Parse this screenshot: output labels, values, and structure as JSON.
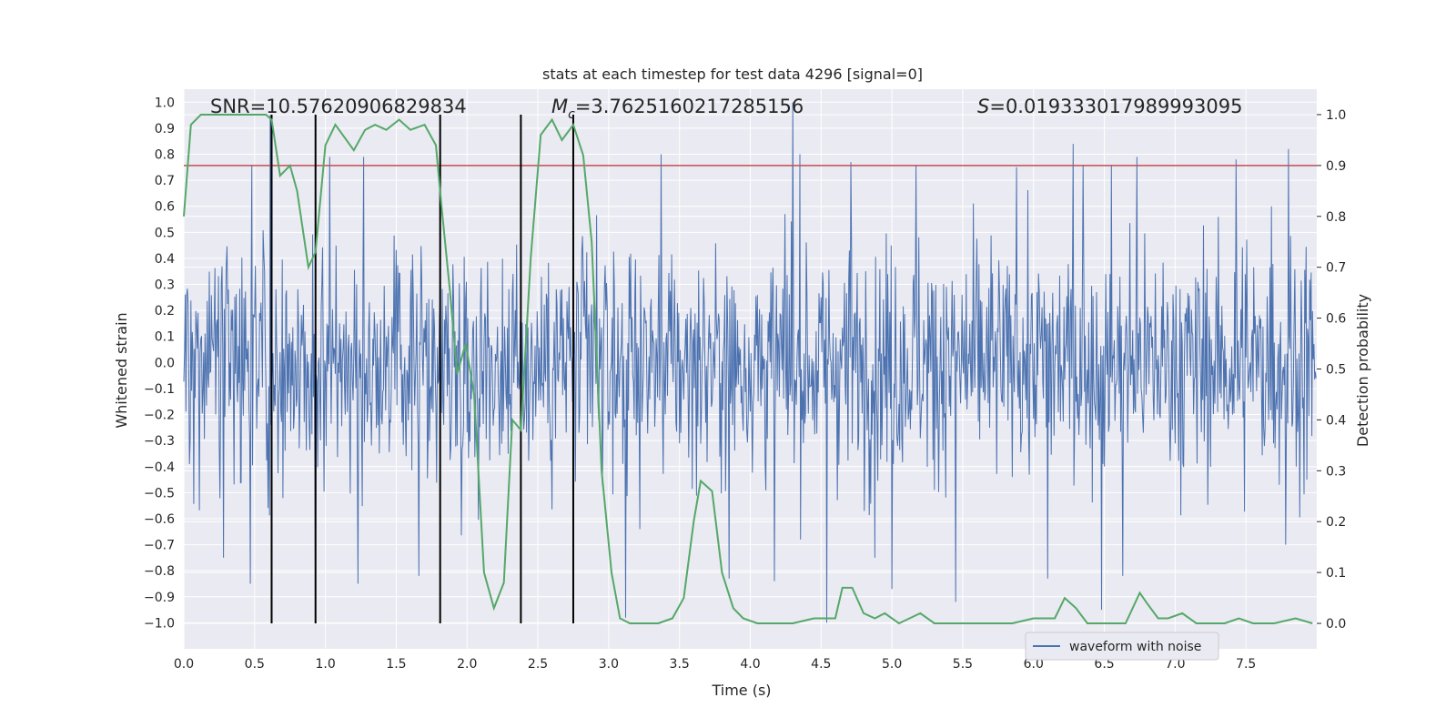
{
  "chart_data": {
    "type": "line",
    "title": "stats at each timestep for test data 4296 [signal=0]",
    "xlabel": "Time (s)",
    "ylabel": "Whitened strain",
    "y2label": "Detection probability",
    "xlim": [
      0.0,
      8.0
    ],
    "ylim": [
      -1.1,
      1.05
    ],
    "y2lim": [
      -0.05,
      1.05
    ],
    "xticks": [
      "0.0",
      "0.5",
      "1.0",
      "1.5",
      "2.0",
      "2.5",
      "3.0",
      "3.5",
      "4.0",
      "4.5",
      "5.0",
      "5.5",
      "6.0",
      "6.5",
      "7.0",
      "7.5"
    ],
    "yticks": [
      "1.0",
      "0.9",
      "0.8",
      "0.7",
      "0.6",
      "0.5",
      "0.4",
      "0.3",
      "0.2",
      "0.1",
      "0.0",
      "-0.1",
      "-0.2",
      "-0.3",
      "-0.4",
      "-0.5",
      "-0.6",
      "-0.7",
      "-0.8",
      "-0.9",
      "-1.0"
    ],
    "y2ticks": [
      "1.0",
      "0.9",
      "0.8",
      "0.7",
      "0.6",
      "0.5",
      "0.4",
      "0.3",
      "0.2",
      "0.1",
      "0.0"
    ],
    "annotations": {
      "snr": "SNR=10.57620906829834",
      "mc_symbol": "M",
      "mc_sub": "c",
      "mc_value": "=3.7625160217285156",
      "s_symbol": "S",
      "s_value": "=0.019333017989993095"
    },
    "legend": {
      "label": "waveform with noise",
      "location": "lower-right"
    },
    "threshold": {
      "value": 0.9,
      "axis": "right",
      "color": "#c44e52"
    },
    "vertical_lines": {
      "x": [
        0.62,
        0.93,
        1.81,
        2.38,
        2.75
      ],
      "top": [
        1.0,
        1.0,
        1.0,
        1.0,
        1.0
      ],
      "bottom": [
        0.0,
        0.0,
        0.0,
        0.0,
        0.0
      ],
      "color": "#000000"
    },
    "series": [
      {
        "name": "waveform with noise",
        "axis": "left",
        "color": "#4c72b0",
        "kind": "noise",
        "duration": 8.0,
        "samples": 1600,
        "seed": 4296,
        "sigma": 0.22,
        "typical_envelope": [
          -0.55,
          0.55
        ],
        "spikes": [
          {
            "x": 0.48,
            "y": 0.76
          },
          {
            "x": 0.61,
            "y": 0.95
          },
          {
            "x": 0.93,
            "y": -0.98
          },
          {
            "x": 1.03,
            "y": 0.79
          },
          {
            "x": 1.27,
            "y": 0.79
          },
          {
            "x": 0.28,
            "y": -0.75
          },
          {
            "x": 0.47,
            "y": -0.85
          },
          {
            "x": 1.23,
            "y": -0.85
          },
          {
            "x": 1.66,
            "y": -0.82
          },
          {
            "x": 3.12,
            "y": -0.98
          },
          {
            "x": 3.37,
            "y": 0.8
          },
          {
            "x": 3.85,
            "y": 0.86
          },
          {
            "x": 4.3,
            "y": 1.0
          },
          {
            "x": 4.35,
            "y": 0.8
          },
          {
            "x": 4.54,
            "y": -1.0
          },
          {
            "x": 4.71,
            "y": 0.77
          },
          {
            "x": 4.17,
            "y": -0.84
          },
          {
            "x": 3.85,
            "y": -0.83
          },
          {
            "x": 4.88,
            "y": -0.75
          },
          {
            "x": 5.0,
            "y": -0.87
          },
          {
            "x": 5.17,
            "y": 0.76
          },
          {
            "x": 5.45,
            "y": -0.92
          },
          {
            "x": 5.88,
            "y": 0.75
          },
          {
            "x": 6.1,
            "y": -0.83
          },
          {
            "x": 6.28,
            "y": 0.84
          },
          {
            "x": 6.35,
            "y": 0.76
          },
          {
            "x": 6.48,
            "y": -0.95
          },
          {
            "x": 6.55,
            "y": 0.76
          },
          {
            "x": 6.63,
            "y": -0.82
          },
          {
            "x": 6.73,
            "y": 0.79
          },
          {
            "x": 7.43,
            "y": 0.78
          },
          {
            "x": 7.78,
            "y": -0.7
          },
          {
            "x": 7.8,
            "y": 0.82
          },
          {
            "x": 7.68,
            "y": 0.6
          }
        ]
      },
      {
        "name": "detection probability",
        "axis": "right",
        "color": "#55a868",
        "x": [
          0.0,
          0.05,
          0.12,
          0.2,
          0.3,
          0.4,
          0.5,
          0.58,
          0.62,
          0.68,
          0.75,
          0.8,
          0.88,
          0.93,
          1.0,
          1.07,
          1.2,
          1.28,
          1.35,
          1.43,
          1.52,
          1.6,
          1.7,
          1.78,
          1.82,
          1.88,
          1.93,
          1.99,
          2.05,
          2.12,
          2.19,
          2.26,
          2.32,
          2.38,
          2.45,
          2.52,
          2.6,
          2.67,
          2.75,
          2.82,
          2.88,
          2.95,
          3.02,
          3.08,
          3.15,
          3.25,
          3.35,
          3.45,
          3.53,
          3.6,
          3.65,
          3.73,
          3.8,
          3.88,
          3.95,
          4.05,
          4.15,
          4.3,
          4.45,
          4.6,
          4.65,
          4.72,
          4.8,
          4.88,
          4.95,
          5.05,
          5.2,
          5.3,
          5.4,
          5.55,
          5.7,
          5.85,
          6.0,
          6.15,
          6.22,
          6.3,
          6.38,
          6.5,
          6.65,
          6.75,
          6.8,
          6.88,
          6.95,
          7.05,
          7.15,
          7.25,
          7.35,
          7.45,
          7.55,
          7.7,
          7.85,
          7.97
        ],
        "y": [
          0.8,
          0.98,
          1.0,
          1.0,
          1.0,
          1.0,
          1.0,
          1.0,
          0.99,
          0.88,
          0.9,
          0.85,
          0.7,
          0.73,
          0.94,
          0.98,
          0.93,
          0.97,
          0.98,
          0.97,
          0.99,
          0.97,
          0.98,
          0.94,
          0.82,
          0.65,
          0.49,
          0.55,
          0.45,
          0.1,
          0.03,
          0.08,
          0.4,
          0.38,
          0.72,
          0.96,
          0.99,
          0.95,
          0.98,
          0.92,
          0.75,
          0.3,
          0.1,
          0.01,
          0.0,
          0.0,
          0.0,
          0.01,
          0.05,
          0.2,
          0.28,
          0.26,
          0.1,
          0.03,
          0.01,
          0.0,
          0.0,
          0.0,
          0.01,
          0.01,
          0.07,
          0.07,
          0.02,
          0.01,
          0.02,
          0.0,
          0.02,
          0.0,
          0.0,
          0.0,
          0.0,
          0.0,
          0.01,
          0.01,
          0.05,
          0.03,
          0.0,
          0.0,
          0.0,
          0.06,
          0.04,
          0.01,
          0.01,
          0.02,
          0.0,
          0.0,
          0.0,
          0.01,
          0.0,
          0.0,
          0.01,
          0.0
        ]
      }
    ]
  }
}
